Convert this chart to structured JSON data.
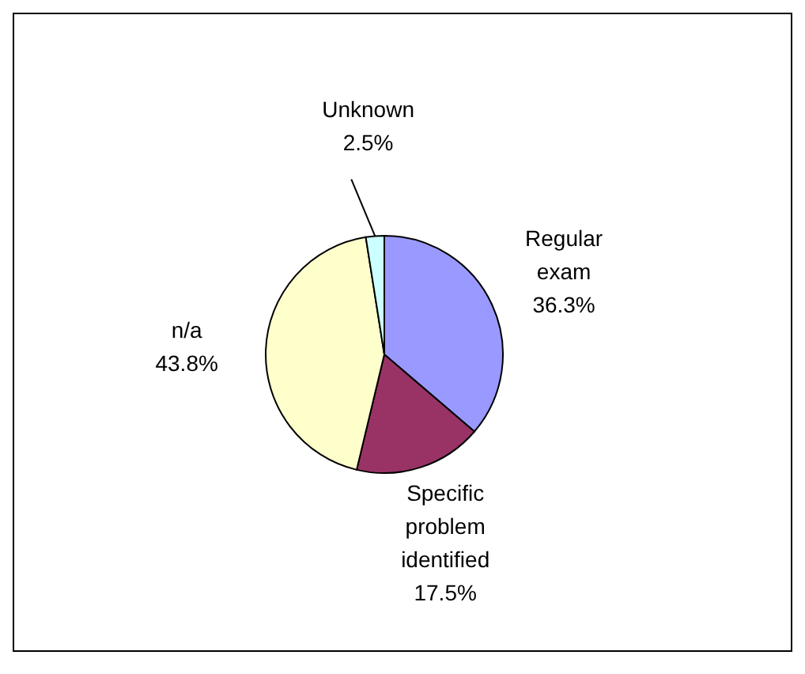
{
  "chart_data": {
    "type": "pie",
    "categories": [
      "Regular exam",
      "Specific problem identified",
      "n/a",
      "Unknown"
    ],
    "values": [
      36.3,
      17.5,
      43.8,
      2.5
    ],
    "value_labels": [
      "36.3%",
      "17.5%",
      "43.8%",
      "2.5%"
    ],
    "colors": [
      "#9999ff",
      "#993366",
      "#ffffcc",
      "#ccffff"
    ],
    "legend": false
  }
}
